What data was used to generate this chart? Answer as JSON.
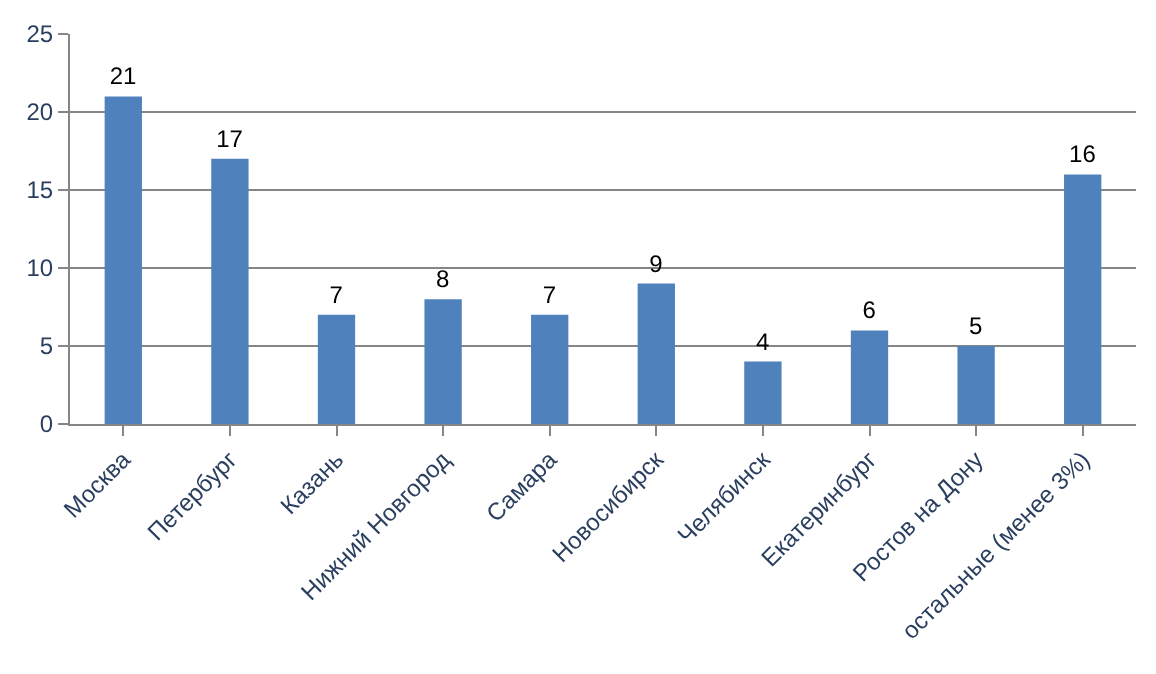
{
  "chart_data": {
    "type": "bar",
    "categories": [
      "Москва",
      "Петербург",
      "Казань",
      "Нижний Новгород",
      "Самара",
      "Новосибирск",
      "Челябинск",
      "Екатеринбург",
      "Ростов на Дону",
      "остальные (менее 3%)"
    ],
    "values": [
      21,
      17,
      7,
      8,
      7,
      9,
      4,
      6,
      5,
      16
    ],
    "color": "#4f81bd",
    "ylim": [
      0,
      25
    ],
    "yticks": [
      0,
      5,
      10,
      15,
      20,
      25
    ],
    "grid": "y",
    "data_labels": true
  }
}
